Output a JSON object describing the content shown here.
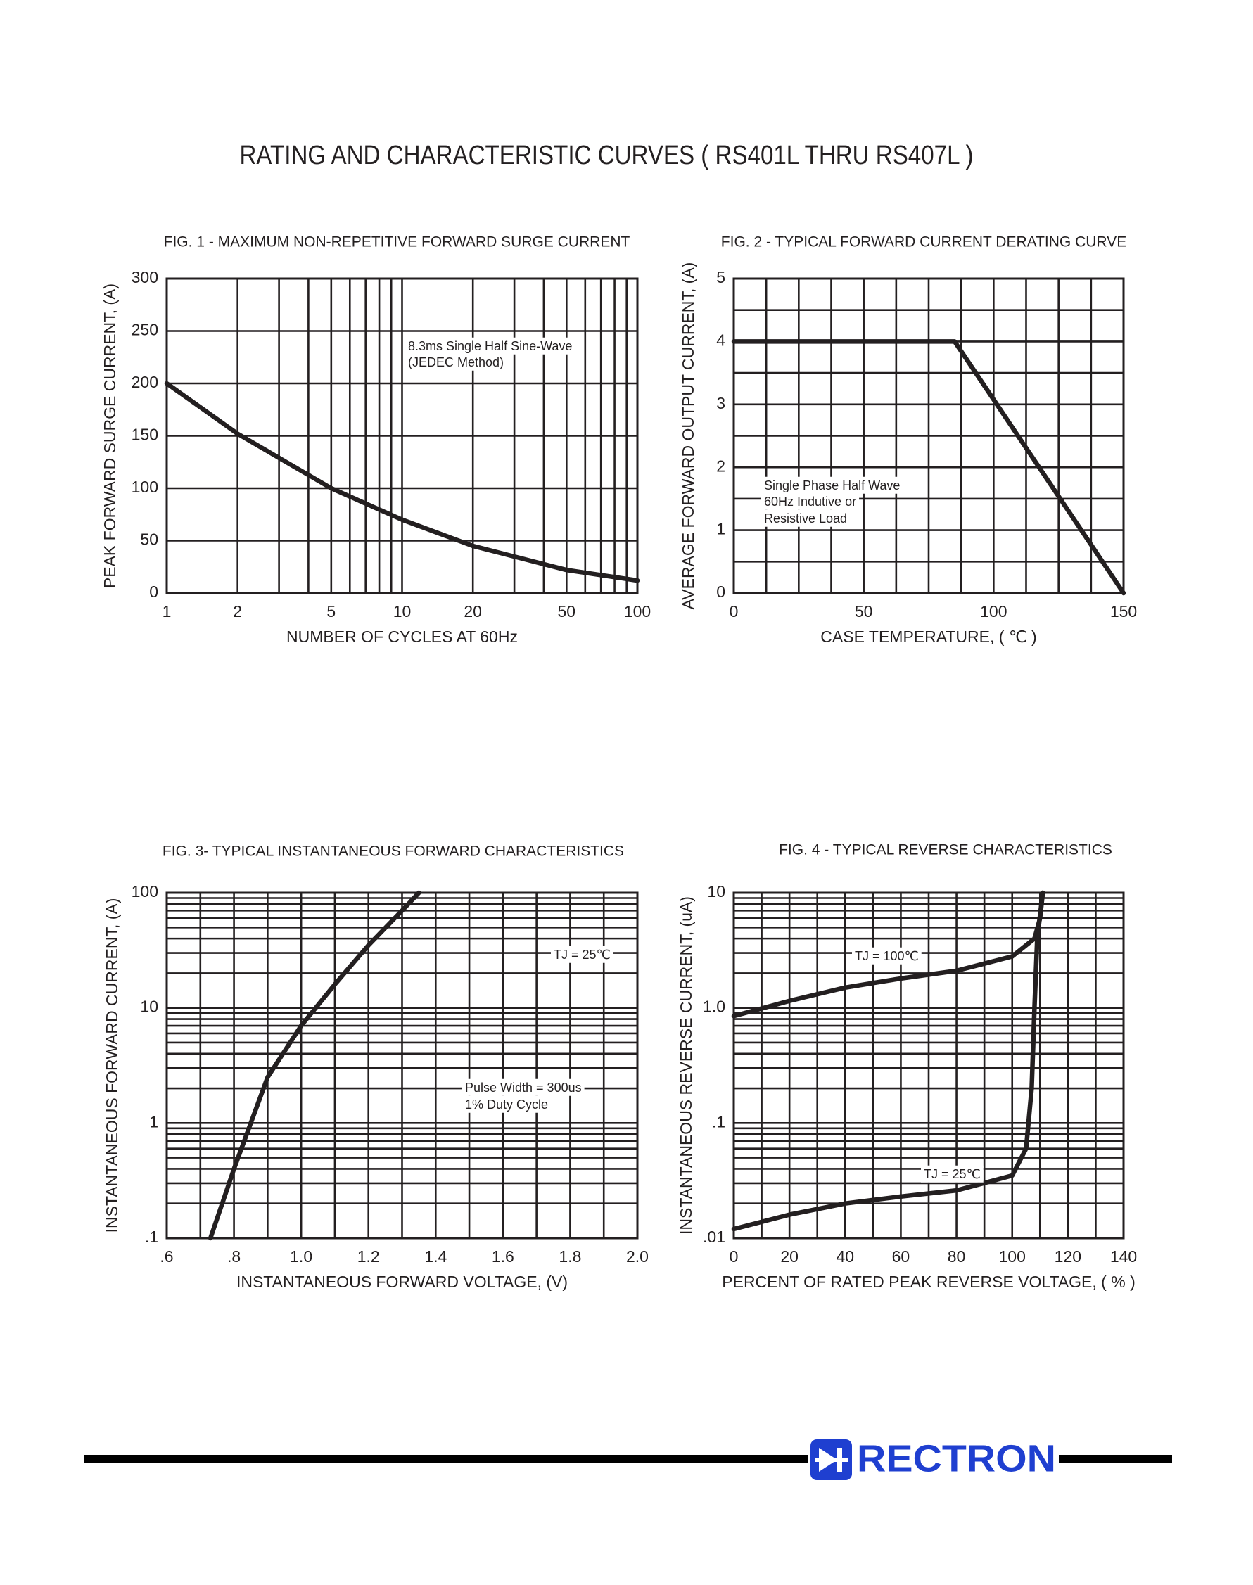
{
  "title": "RATING AND CHARACTERISTIC CURVES ( RS401L THRU RS407L )",
  "logo": "RECTRON",
  "chart_data": [
    {
      "type": "line",
      "title": "FIG. 1 - MAXIMUM NON-REPETITIVE FORWARD SURGE CURRENT",
      "xlabel": "NUMBER OF CYCLES AT 60Hz",
      "ylabel": "PEAK FORWARD SURGE CURRENT, (A)",
      "xscale": "log",
      "yscale": "linear",
      "grid": true,
      "color": "#231f20",
      "xlim": [
        1,
        100
      ],
      "xticks": [
        1,
        2,
        5,
        10,
        20,
        50,
        100
      ],
      "xminor": [
        3,
        4,
        6,
        7,
        8,
        9,
        30,
        40,
        60,
        70,
        80,
        90
      ],
      "ylim": [
        0,
        300
      ],
      "yticks": [
        0,
        50,
        100,
        150,
        200,
        250,
        300
      ],
      "yminor": [],
      "x": [
        1,
        2,
        5,
        10,
        20,
        50,
        100
      ],
      "values": [
        200,
        152,
        100,
        70,
        45,
        22,
        12
      ],
      "annotations": [
        "8.3ms Single Half Sine-Wave",
        "(JEDEC Method)"
      ]
    },
    {
      "type": "line",
      "title": "FIG. 2 - TYPICAL FORWARD CURRENT DERATING CURVE",
      "xlabel": "CASE TEMPERATURE, ( ℃ )",
      "ylabel": "AVERAGE FORWARD OUTPUT CURRENT, (A)",
      "xscale": "linear",
      "yscale": "linear",
      "grid": true,
      "color": "#231f20",
      "xlim": [
        0,
        150
      ],
      "xticks": [
        0,
        50,
        100,
        150
      ],
      "xminor": [
        12.5,
        25,
        37.5,
        62.5,
        75,
        87.5,
        112.5,
        125,
        137.5
      ],
      "ylim": [
        0,
        5
      ],
      "yticks": [
        0,
        1,
        2,
        3,
        4,
        5
      ],
      "yminor": [
        0.5,
        1.5,
        2.5,
        3.5,
        4.5
      ],
      "x": [
        0,
        85,
        150
      ],
      "values": [
        4,
        4,
        0
      ],
      "annotations": [
        "Single Phase Half Wave",
        "60Hz Indutive or",
        "Resistive Load"
      ]
    },
    {
      "type": "line",
      "title": "FIG. 3- TYPICAL INSTANTANEOUS FORWARD CHARACTERISTICS",
      "xlabel": "INSTANTANEOUS FORWARD VOLTAGE, (V)",
      "ylabel": "INSTANTANEOUS FORWARD CURRENT, (A)",
      "xscale": "linear",
      "yscale": "log",
      "grid": true,
      "xlim": [
        0.6,
        2.0
      ],
      "xticks": [
        {
          "value": 0.6,
          "label": ".6"
        },
        {
          "value": 0.8,
          "label": ".8"
        },
        {
          "value": 1.0,
          "label": "1.0"
        },
        1.2,
        1.4,
        1.6,
        1.8,
        {
          "value": 2.0,
          "label": "2.0"
        }
      ],
      "xminor": [
        0.7,
        0.9,
        1.1,
        1.3,
        1.5,
        1.7,
        1.9
      ],
      "ylim": [
        0.1,
        100
      ],
      "yticks": [
        {
          "value": 0.1,
          "label": ".1"
        },
        1,
        10,
        100
      ],
      "yminor": [
        0.2,
        0.3,
        0.4,
        0.5,
        0.6,
        0.7,
        0.8,
        0.9,
        2,
        3,
        4,
        5,
        6,
        7,
        8,
        9,
        20,
        30,
        40,
        50,
        60,
        70,
        80,
        90
      ],
      "series": [
        {
          "name": "TJ = 25℃",
          "color": "#231f20",
          "x": [
            0.73,
            0.8,
            0.9,
            1.0,
            1.1,
            1.2,
            1.3,
            1.35
          ],
          "values": [
            0.1,
            0.4,
            2.5,
            7,
            16,
            35,
            70,
            100
          ]
        }
      ],
      "annotations": [
        "Pulse Width = 300us",
        "1% Duty Cycle"
      ]
    },
    {
      "type": "line",
      "title": "FIG. 4 - TYPICAL REVERSE CHARACTERISTICS",
      "xlabel": "PERCENT OF RATED PEAK REVERSE VOLTAGE, ( % )",
      "ylabel": "INSTANTANEOUS REVERSE CURRENT, (uA)",
      "xscale": "linear",
      "yscale": "log",
      "grid": true,
      "xlim": [
        0,
        140
      ],
      "xticks": [
        0,
        20,
        40,
        60,
        80,
        100,
        120,
        140
      ],
      "xminor": [
        10,
        30,
        50,
        70,
        90,
        110,
        130
      ],
      "ylim": [
        0.01,
        10
      ],
      "yticks": [
        {
          "value": 0.01,
          "label": ".01"
        },
        {
          "value": 0.1,
          "label": ".1"
        },
        {
          "value": 1,
          "label": "1.0"
        },
        10
      ],
      "yminor": [
        0.02,
        0.03,
        0.04,
        0.05,
        0.06,
        0.07,
        0.08,
        0.09,
        0.2,
        0.3,
        0.4,
        0.5,
        0.6,
        0.7,
        0.8,
        0.9,
        2,
        3,
        4,
        5,
        6,
        7,
        8,
        9
      ],
      "series": [
        {
          "name": "TJ = 100℃",
          "color": "#231f20",
          "x": [
            0,
            20,
            40,
            60,
            80,
            100,
            108,
            110,
            111
          ],
          "values": [
            0.85,
            1.15,
            1.5,
            1.8,
            2.1,
            2.8,
            4,
            6,
            10
          ]
        },
        {
          "name": "TJ = 25℃",
          "color": "#231f20",
          "x": [
            0,
            20,
            40,
            60,
            80,
            100,
            105,
            107,
            108,
            109,
            111
          ],
          "values": [
            0.012,
            0.016,
            0.02,
            0.023,
            0.026,
            0.035,
            0.06,
            0.2,
            1,
            4,
            10
          ]
        }
      ],
      "annotations": []
    }
  ]
}
